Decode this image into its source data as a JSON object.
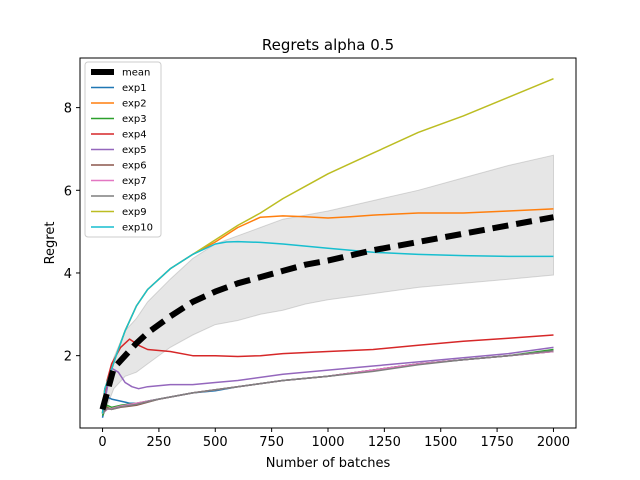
{
  "chart_data": {
    "type": "line",
    "title": "Regrets alpha 0.5",
    "xlabel": "Number of batches",
    "ylabel": "Regret",
    "xlim": [
      -100,
      2100
    ],
    "ylim": [
      0.25,
      9.2
    ],
    "xticks": [
      0,
      250,
      500,
      750,
      1000,
      1250,
      1500,
      1750,
      2000
    ],
    "yticks": [
      2,
      4,
      6,
      8
    ],
    "grid": false,
    "legend_position": "upper-left",
    "band": {
      "x": [
        0,
        50,
        100,
        150,
        200,
        300,
        400,
        500,
        600,
        700,
        800,
        900,
        1000,
        1200,
        1400,
        1600,
        1800,
        2000
      ],
      "upper": [
        0.9,
        1.95,
        2.6,
        2.9,
        3.3,
        3.85,
        4.35,
        4.7,
        4.9,
        5.1,
        5.3,
        5.4,
        5.5,
        5.75,
        6.0,
        6.3,
        6.6,
        6.85
      ],
      "lower": [
        0.5,
        1.2,
        1.5,
        1.6,
        1.8,
        2.2,
        2.5,
        2.75,
        2.85,
        3.0,
        3.1,
        3.25,
        3.35,
        3.5,
        3.65,
        3.75,
        3.85,
        3.95
      ]
    },
    "series": [
      {
        "name": "mean",
        "color": "#000000",
        "width": 6,
        "dash": "16,8",
        "x": [
          0,
          50,
          100,
          150,
          200,
          300,
          400,
          500,
          600,
          700,
          800,
          900,
          1000,
          1200,
          1400,
          1600,
          1800,
          2000
        ],
        "y": [
          0.7,
          1.7,
          2.0,
          2.3,
          2.55,
          2.95,
          3.3,
          3.55,
          3.75,
          3.9,
          4.05,
          4.2,
          4.3,
          4.55,
          4.75,
          4.95,
          5.15,
          5.35
        ]
      },
      {
        "name": "exp1",
        "color": "#1f77b4",
        "width": 1.5,
        "x": [
          0,
          20,
          40,
          80,
          120,
          160,
          200,
          300,
          400,
          500,
          600,
          800,
          1000,
          1200,
          1400,
          1600,
          1800,
          2000
        ],
        "y": [
          0.5,
          1.0,
          0.95,
          0.9,
          0.85,
          0.85,
          0.9,
          1.0,
          1.1,
          1.15,
          1.25,
          1.4,
          1.5,
          1.65,
          1.8,
          1.9,
          2.0,
          2.1
        ]
      },
      {
        "name": "exp2",
        "color": "#ff7f0e",
        "width": 1.5,
        "x": [
          0,
          10,
          30,
          60,
          100,
          150,
          200,
          300,
          400,
          500,
          600,
          700,
          800,
          900,
          1000,
          1100,
          1200,
          1400,
          1600,
          1800,
          2000
        ],
        "y": [
          0.6,
          1.2,
          1.5,
          2.0,
          2.6,
          3.2,
          3.6,
          4.1,
          4.45,
          4.75,
          5.1,
          5.35,
          5.38,
          5.36,
          5.33,
          5.36,
          5.4,
          5.45,
          5.45,
          5.5,
          5.55
        ]
      },
      {
        "name": "exp3",
        "color": "#2ca02c",
        "width": 1.5,
        "x": [
          0,
          20,
          40,
          80,
          150,
          250,
          400,
          600,
          800,
          1000,
          1200,
          1400,
          1600,
          1800,
          2000
        ],
        "y": [
          0.55,
          0.8,
          0.75,
          0.8,
          0.85,
          0.95,
          1.1,
          1.25,
          1.4,
          1.5,
          1.65,
          1.8,
          1.9,
          2.0,
          2.15
        ]
      },
      {
        "name": "exp4",
        "color": "#d62728",
        "width": 1.5,
        "x": [
          0,
          20,
          40,
          80,
          120,
          160,
          200,
          300,
          400,
          500,
          600,
          700,
          800,
          1000,
          1200,
          1400,
          1600,
          1800,
          2000
        ],
        "y": [
          0.6,
          1.4,
          1.8,
          2.2,
          2.4,
          2.25,
          2.15,
          2.1,
          2.0,
          2.0,
          1.98,
          2.0,
          2.05,
          2.1,
          2.15,
          2.25,
          2.35,
          2.42,
          2.5
        ]
      },
      {
        "name": "exp5",
        "color": "#9467bd",
        "width": 1.5,
        "x": [
          0,
          20,
          40,
          70,
          100,
          130,
          160,
          200,
          300,
          400,
          500,
          600,
          800,
          1000,
          1200,
          1400,
          1600,
          1800,
          2000
        ],
        "y": [
          0.6,
          1.2,
          1.7,
          1.6,
          1.35,
          1.25,
          1.2,
          1.25,
          1.3,
          1.3,
          1.35,
          1.4,
          1.55,
          1.65,
          1.75,
          1.85,
          1.95,
          2.05,
          2.2
        ]
      },
      {
        "name": "exp6",
        "color": "#8c564b",
        "width": 1.5,
        "x": [
          0,
          20,
          40,
          80,
          150,
          250,
          400,
          600,
          800,
          1000,
          1200,
          1400,
          1600,
          1800,
          2000
        ],
        "y": [
          0.6,
          0.75,
          0.7,
          0.75,
          0.8,
          0.95,
          1.1,
          1.25,
          1.4,
          1.5,
          1.65,
          1.8,
          1.9,
          2.0,
          2.1
        ]
      },
      {
        "name": "exp7",
        "color": "#e377c2",
        "width": 1.5,
        "x": [
          0,
          20,
          40,
          80,
          150,
          250,
          400,
          600,
          800,
          1000,
          1200,
          1400,
          1600,
          1800,
          2000
        ],
        "y": [
          0.6,
          0.7,
          0.72,
          0.78,
          0.85,
          0.95,
          1.1,
          1.25,
          1.4,
          1.5,
          1.65,
          1.8,
          1.9,
          2.0,
          2.1
        ]
      },
      {
        "name": "exp8",
        "color": "#7f7f7f",
        "width": 1.5,
        "x": [
          0,
          20,
          40,
          80,
          150,
          250,
          400,
          600,
          800,
          1000,
          1200,
          1400,
          1600,
          1800,
          2000
        ],
        "y": [
          0.6,
          0.72,
          0.7,
          0.76,
          0.82,
          0.95,
          1.1,
          1.25,
          1.4,
          1.5,
          1.62,
          1.78,
          1.9,
          2.0,
          2.12
        ]
      },
      {
        "name": "exp9",
        "color": "#bcbd22",
        "width": 1.5,
        "x": [
          0,
          10,
          30,
          60,
          100,
          150,
          200,
          300,
          400,
          500,
          600,
          700,
          800,
          900,
          1000,
          1100,
          1200,
          1400,
          1600,
          1800,
          2000
        ],
        "y": [
          0.6,
          1.2,
          1.5,
          2.0,
          2.6,
          3.2,
          3.6,
          4.1,
          4.45,
          4.8,
          5.15,
          5.45,
          5.8,
          6.1,
          6.4,
          6.65,
          6.9,
          7.4,
          7.8,
          8.25,
          8.7
        ]
      },
      {
        "name": "exp10",
        "color": "#17becf",
        "width": 1.5,
        "x": [
          0,
          10,
          30,
          60,
          100,
          150,
          200,
          300,
          400,
          500,
          550,
          600,
          700,
          800,
          900,
          1000,
          1100,
          1200,
          1400,
          1600,
          1800,
          2000
        ],
        "y": [
          0.6,
          1.2,
          1.5,
          2.0,
          2.6,
          3.2,
          3.6,
          4.1,
          4.45,
          4.7,
          4.75,
          4.76,
          4.74,
          4.7,
          4.65,
          4.6,
          4.55,
          4.5,
          4.45,
          4.42,
          4.4,
          4.4
        ]
      }
    ]
  }
}
